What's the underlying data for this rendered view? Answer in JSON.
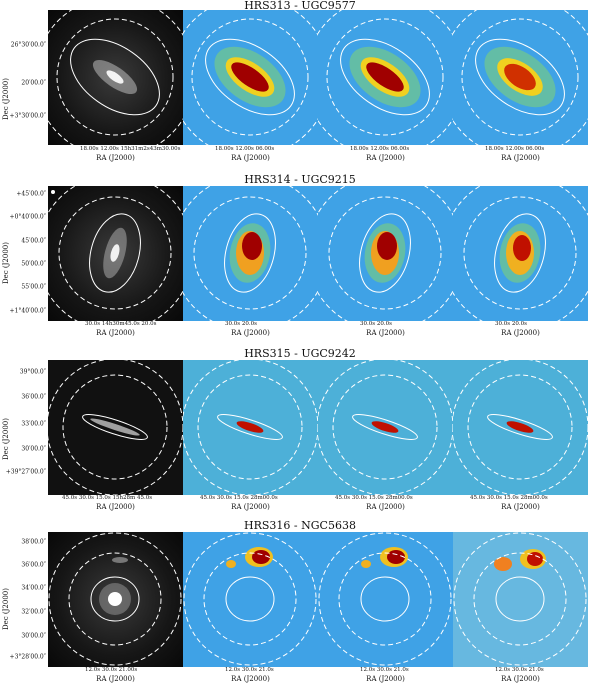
{
  "rows": [
    {
      "title": "HRS313 - UGC9577",
      "ylabel": "Dec (J2000)",
      "yticks": [
        "26°30′00.0″",
        "20′00.0″",
        "+3°30′00.0″"
      ],
      "xticks_gray": "18.00s  12.00s  15h31m2s43m30.00s",
      "xticks_heat": "18.00s  12.00s  06.00s",
      "xlabel": "RA (J2000)"
    },
    {
      "title": "HRS314 - UGC9215",
      "ylabel": "Dec (J2000)",
      "yticks": [
        "+45′00.0″",
        "+0°40′00.0″",
        "45′00.0″",
        "50′00.0″",
        "55′00.0″",
        "+1°40′00.0″"
      ],
      "xticks_gray": "30.0s  14h30m45.0s  20.0s",
      "xticks_heat": "30.0s  20.0s",
      "xlabel": "RA (J2000)"
    },
    {
      "title": "HRS315 - UGC9242",
      "ylabel": "Dec (J2000)",
      "yticks": [
        "39°00.0″",
        "36′00.0″",
        "33′00.0″",
        "30′00.0″",
        "+39°27′00.0″"
      ],
      "xticks_gray": "45.0s  30.0s  15.0s  15h28m  45.0s",
      "xticks_heat": "45.0s  30.0s  15.0s  28m00.0s",
      "xlabel": "RA (J2000)"
    },
    {
      "title": "HRS316 - NGC5638",
      "ylabel": "Dec (J2000)",
      "yticks": [
        "38′00.0″",
        "36′00.0″",
        "34′00.0″",
        "32′00.0″",
        "30′00.0″",
        "+3°28′00.0″"
      ],
      "xticks_gray": "12.0s  30.0s  21.00s",
      "xticks_heat": "12.0s  30.0s  21.0s",
      "xlabel": "RA (J2000)"
    }
  ],
  "colors": {
    "ellipse": "#ffffff",
    "heat_bg": "#3fa2e6",
    "core": "#a00000"
  }
}
